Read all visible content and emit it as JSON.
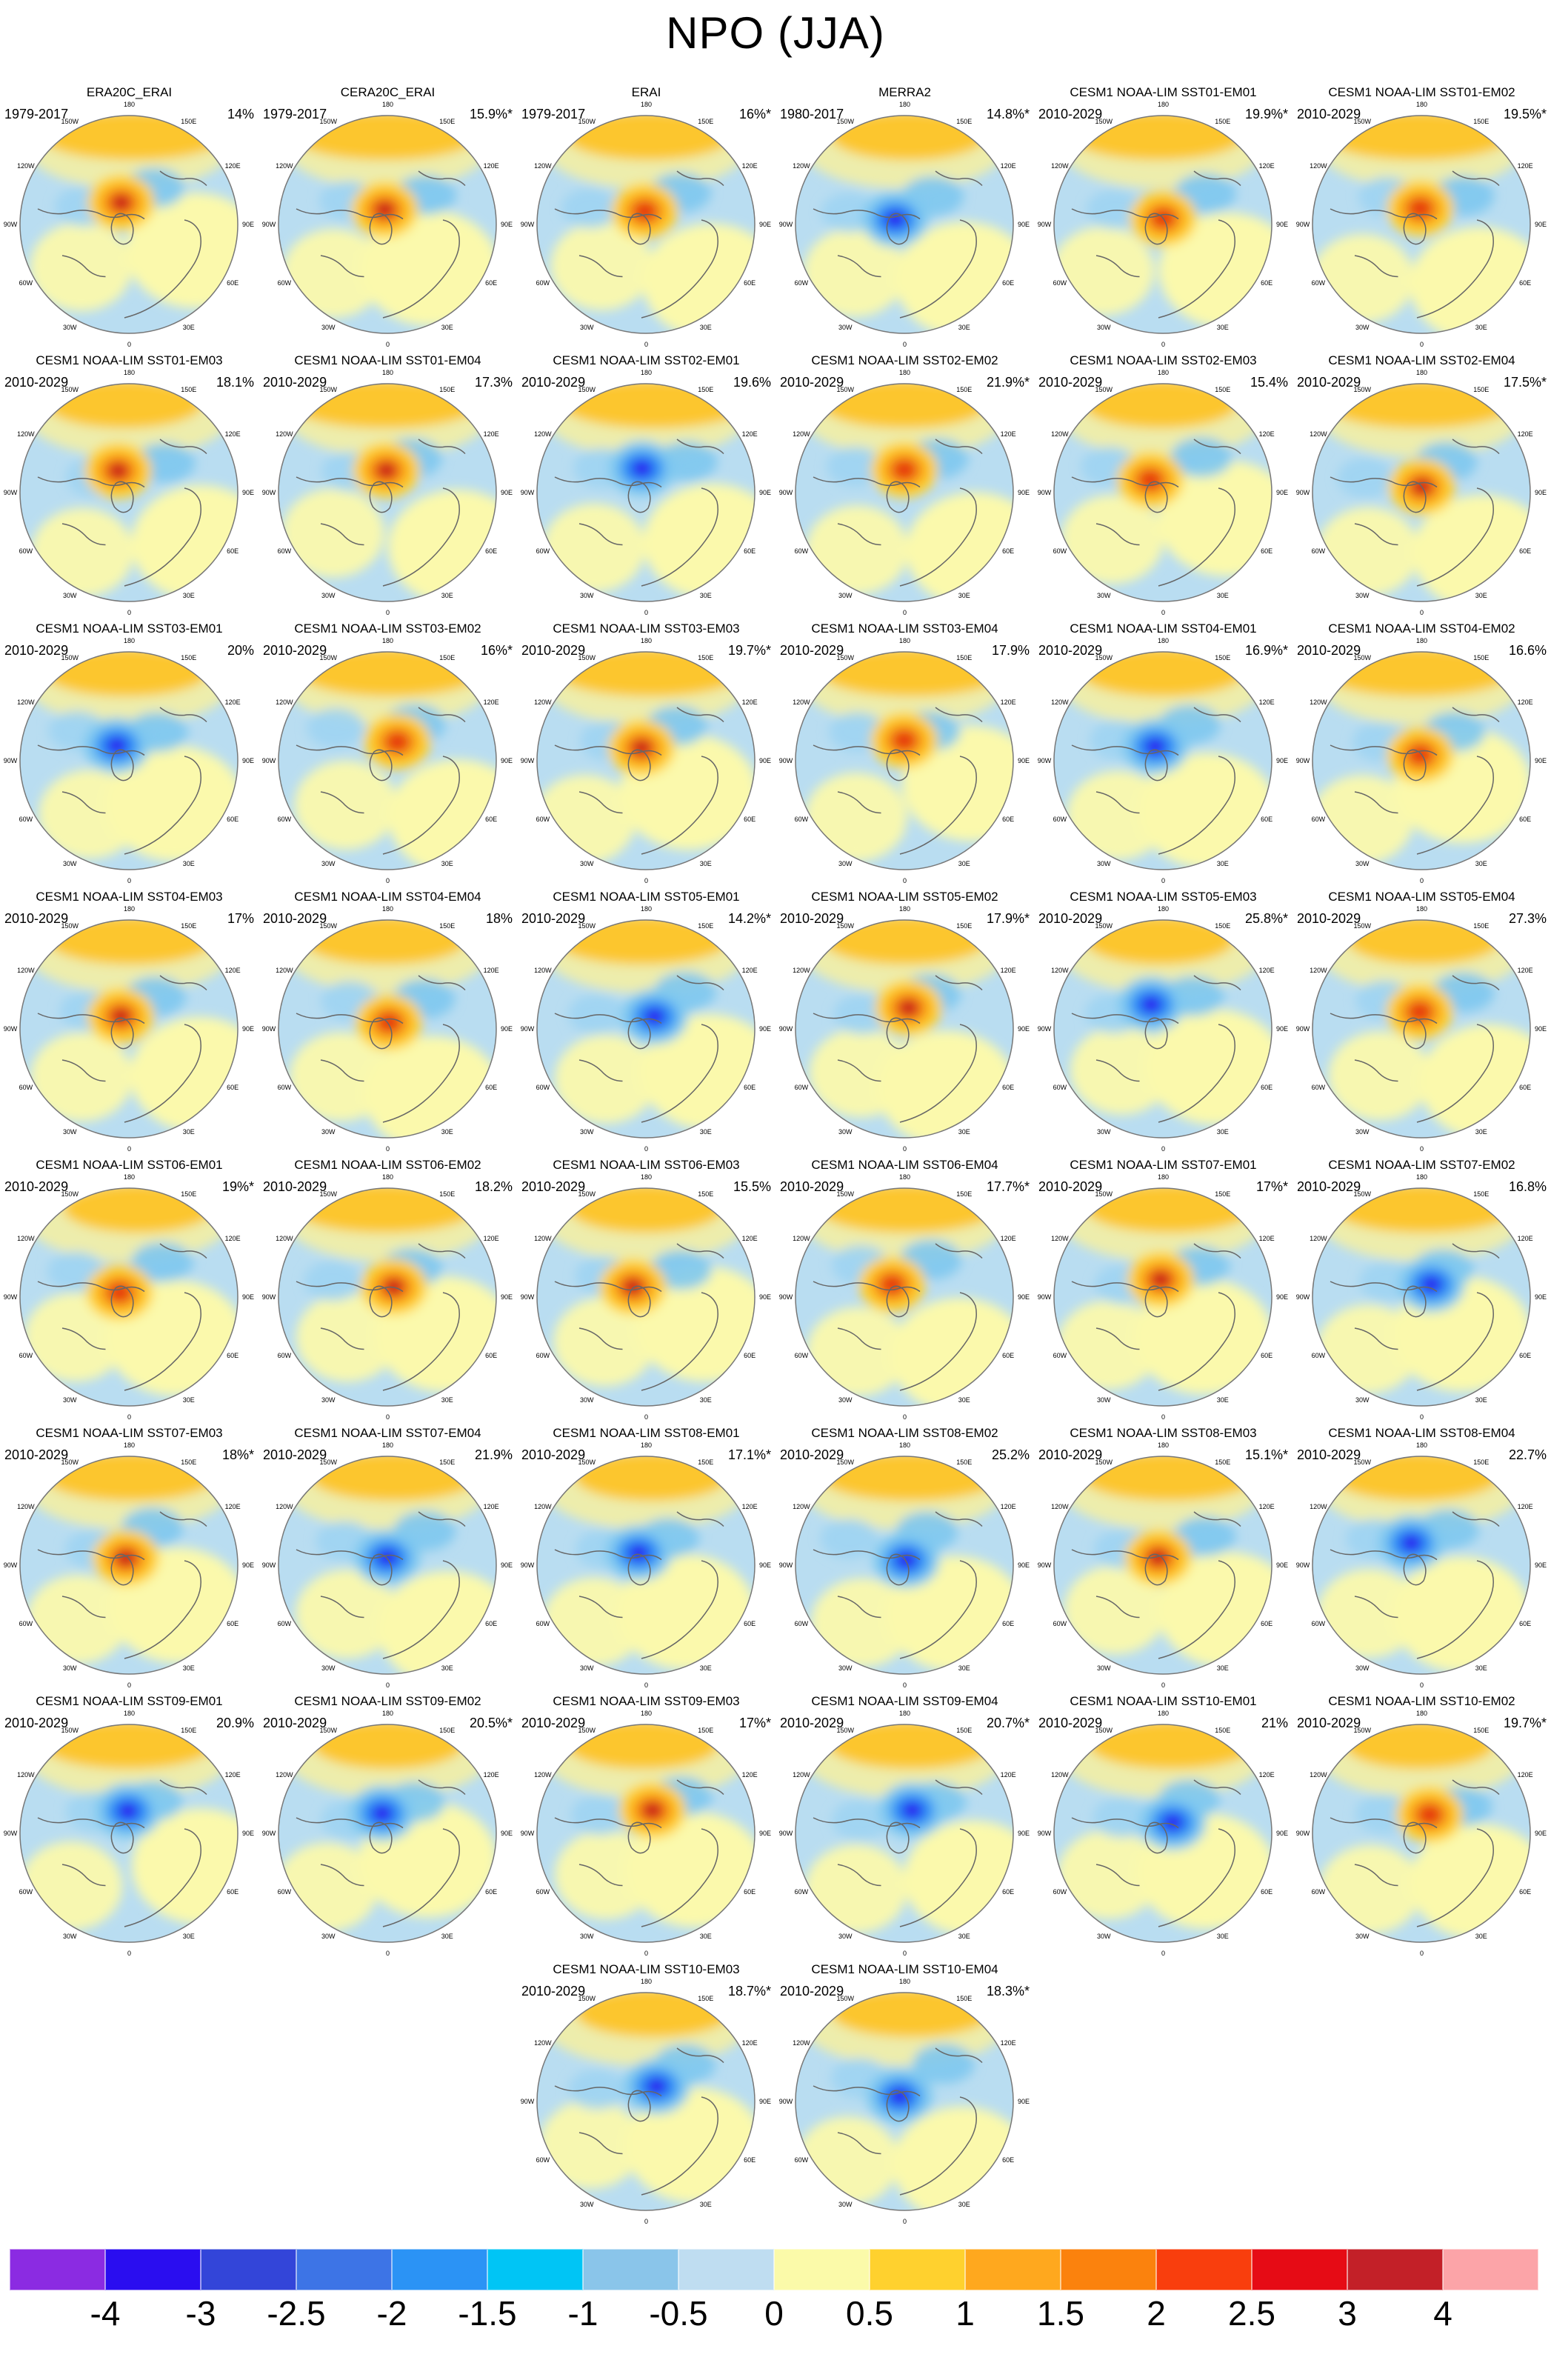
{
  "chart_data": {
    "type": "heatmap",
    "title": "NPO (JJA)",
    "projection": "north polar stereographic map grid",
    "layout": {
      "columns": 6,
      "rows": 8,
      "legend_position": "bottom-colorbar"
    },
    "colorbar": {
      "orientation": "horizontal",
      "tick_labels": [
        "-4",
        "-3",
        "-2.5",
        "-2",
        "-1.5",
        "-1",
        "-0.5",
        "0",
        "0.5",
        "1",
        "1.5",
        "2",
        "2.5",
        "3",
        "4"
      ],
      "segment_colors": [
        "#8b2be2",
        "#2a0df0",
        "#3345d9",
        "#3d74e6",
        "#2b93f5",
        "#00c5f5",
        "#8ac5ea",
        "#bfddf1",
        "#fbfaa9",
        "#ffd12e",
        "#ffa81e",
        "#fb820d",
        "#f93e0d",
        "#e60b15",
        "#c32028",
        "#fca4a8"
      ]
    },
    "panels": [
      {
        "title": "ERA20C_ERAI",
        "period": "1979-2017",
        "value": "14%"
      },
      {
        "title": "CERA20C_ERAI",
        "period": "1979-2017",
        "value": "15.9%*"
      },
      {
        "title": "ERAI",
        "period": "1979-2017",
        "value": "16%*"
      },
      {
        "title": "MERRA2",
        "period": "1980-2017",
        "value": "14.8%*"
      },
      {
        "title": "CESM1 NOAA-LIM SST01-EM01",
        "period": "2010-2029",
        "value": "19.9%*"
      },
      {
        "title": "CESM1 NOAA-LIM SST01-EM02",
        "period": "2010-2029",
        "value": "19.5%*"
      },
      {
        "title": "CESM1 NOAA-LIM SST01-EM03",
        "period": "2010-2029",
        "value": "18.1%"
      },
      {
        "title": "CESM1 NOAA-LIM SST01-EM04",
        "period": "2010-2029",
        "value": "17.3%"
      },
      {
        "title": "CESM1 NOAA-LIM SST02-EM01",
        "period": "2010-2029",
        "value": "19.6%"
      },
      {
        "title": "CESM1 NOAA-LIM SST02-EM02",
        "period": "2010-2029",
        "value": "21.9%*"
      },
      {
        "title": "CESM1 NOAA-LIM SST02-EM03",
        "period": "2010-2029",
        "value": "15.4%"
      },
      {
        "title": "CESM1 NOAA-LIM SST02-EM04",
        "period": "2010-2029",
        "value": "17.5%*"
      },
      {
        "title": "CESM1 NOAA-LIM SST03-EM01",
        "period": "2010-2029",
        "value": "20%"
      },
      {
        "title": "CESM1 NOAA-LIM SST03-EM02",
        "period": "2010-2029",
        "value": "16%*"
      },
      {
        "title": "CESM1 NOAA-LIM SST03-EM03",
        "period": "2010-2029",
        "value": "19.7%*"
      },
      {
        "title": "CESM1 NOAA-LIM SST03-EM04",
        "period": "2010-2029",
        "value": "17.9%"
      },
      {
        "title": "CESM1 NOAA-LIM SST04-EM01",
        "period": "2010-2029",
        "value": "16.9%*"
      },
      {
        "title": "CESM1 NOAA-LIM SST04-EM02",
        "period": "2010-2029",
        "value": "16.6%"
      },
      {
        "title": "CESM1 NOAA-LIM SST04-EM03",
        "period": "2010-2029",
        "value": "17%"
      },
      {
        "title": "CESM1 NOAA-LIM SST04-EM04",
        "period": "2010-2029",
        "value": "18%"
      },
      {
        "title": "CESM1 NOAA-LIM SST05-EM01",
        "period": "2010-2029",
        "value": "14.2%*"
      },
      {
        "title": "CESM1 NOAA-LIM SST05-EM02",
        "period": "2010-2029",
        "value": "17.9%*"
      },
      {
        "title": "CESM1 NOAA-LIM SST05-EM03",
        "period": "2010-2029",
        "value": "25.8%*"
      },
      {
        "title": "CESM1 NOAA-LIM SST05-EM04",
        "period": "2010-2029",
        "value": "27.3%"
      },
      {
        "title": "CESM1 NOAA-LIM SST06-EM01",
        "period": "2010-2029",
        "value": "19%*"
      },
      {
        "title": "CESM1 NOAA-LIM SST06-EM02",
        "period": "2010-2029",
        "value": "18.2%"
      },
      {
        "title": "CESM1 NOAA-LIM SST06-EM03",
        "period": "2010-2029",
        "value": "15.5%"
      },
      {
        "title": "CESM1 NOAA-LIM SST06-EM04",
        "period": "2010-2029",
        "value": "17.7%*"
      },
      {
        "title": "CESM1 NOAA-LIM SST07-EM01",
        "period": "2010-2029",
        "value": "17%*"
      },
      {
        "title": "CESM1 NOAA-LIM SST07-EM02",
        "period": "2010-2029",
        "value": "16.8%"
      },
      {
        "title": "CESM1 NOAA-LIM SST07-EM03",
        "period": "2010-2029",
        "value": "18%*"
      },
      {
        "title": "CESM1 NOAA-LIM SST07-EM04",
        "period": "2010-2029",
        "value": "21.9%"
      },
      {
        "title": "CESM1 NOAA-LIM SST08-EM01",
        "period": "2010-2029",
        "value": "17.1%*"
      },
      {
        "title": "CESM1 NOAA-LIM SST08-EM02",
        "period": "2010-2029",
        "value": "25.2%"
      },
      {
        "title": "CESM1 NOAA-LIM SST08-EM03",
        "period": "2010-2029",
        "value": "15.1%*"
      },
      {
        "title": "CESM1 NOAA-LIM SST08-EM04",
        "period": "2010-2029",
        "value": "22.7%"
      },
      {
        "title": "CESM1 NOAA-LIM SST09-EM01",
        "period": "2010-2029",
        "value": "20.9%"
      },
      {
        "title": "CESM1 NOAA-LIM SST09-EM02",
        "period": "2010-2029",
        "value": "20.5%*"
      },
      {
        "title": "CESM1 NOAA-LIM SST09-EM03",
        "period": "2010-2029",
        "value": "17%*"
      },
      {
        "title": "CESM1 NOAA-LIM SST09-EM04",
        "period": "2010-2029",
        "value": "20.7%*"
      },
      {
        "title": "CESM1 NOAA-LIM SST10-EM01",
        "period": "2010-2029",
        "value": "21%"
      },
      {
        "title": "CESM1 NOAA-LIM SST10-EM02",
        "period": "2010-2029",
        "value": "19.7%*"
      },
      {
        "title": "CESM1 NOAA-LIM SST10-EM03",
        "period": "2010-2029",
        "value": "18.7%*"
      },
      {
        "title": "CESM1 NOAA-LIM SST10-EM04",
        "period": "2010-2029",
        "value": "18.3%*"
      }
    ]
  },
  "map": {
    "ring_labels": [
      "180",
      "150W",
      "150E",
      "120W",
      "120E",
      "90W",
      "90E",
      "60W",
      "60E",
      "30W",
      "30E",
      "0"
    ]
  }
}
